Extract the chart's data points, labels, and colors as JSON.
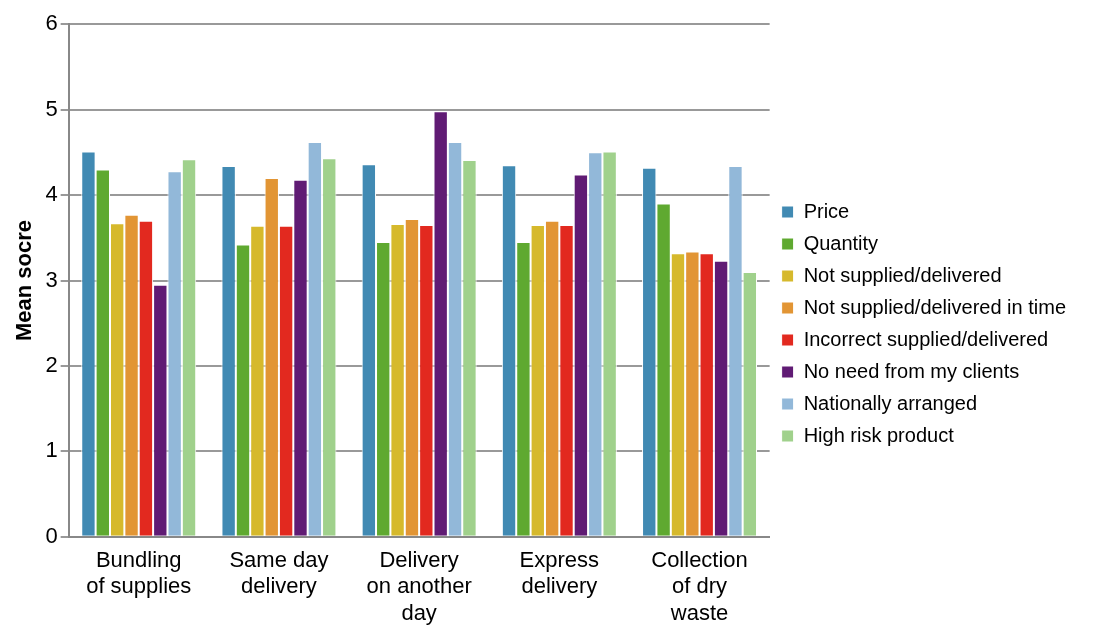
{
  "chart_data": {
    "type": "bar",
    "ylabel": "Mean socre",
    "categories": [
      "Bundling of supplies",
      "Same day delivery",
      "Delivery on another day",
      "Express delivery",
      "Collection of dry waste"
    ],
    "series": [
      {
        "name": "Price",
        "color": "#418ab3",
        "values": [
          4.51,
          4.34,
          4.36,
          4.35,
          4.32
        ]
      },
      {
        "name": "Quantity",
        "color": "#5fa930",
        "values": [
          4.3,
          3.42,
          3.45,
          3.45,
          3.9
        ]
      },
      {
        "name": "Not supplied/delivered",
        "color": "#d6b92c",
        "values": [
          3.67,
          3.64,
          3.66,
          3.65,
          3.32
        ]
      },
      {
        "name": "Not supplied/delivered in time",
        "color": "#e29534",
        "values": [
          3.77,
          4.2,
          3.72,
          3.7,
          3.34
        ]
      },
      {
        "name": "Incorrect supplied/delivered",
        "color": "#e2291f",
        "values": [
          3.7,
          3.64,
          3.65,
          3.65,
          3.32
        ]
      },
      {
        "name": "No need from my clients",
        "color": "#601b74",
        "values": [
          2.95,
          4.18,
          4.98,
          4.24,
          3.23
        ]
      },
      {
        "name": "Nationally arranged",
        "color": "#92b8d9",
        "values": [
          4.28,
          4.62,
          4.62,
          4.5,
          4.34
        ]
      },
      {
        "name": "High risk product",
        "color": "#a0d18c",
        "values": [
          4.42,
          4.43,
          4.41,
          4.51,
          3.1
        ]
      }
    ],
    "ylim": [
      0,
      6
    ],
    "yticks": [
      0,
      1,
      2,
      3,
      4,
      5,
      6
    ],
    "grid": "y",
    "legend": "right"
  }
}
